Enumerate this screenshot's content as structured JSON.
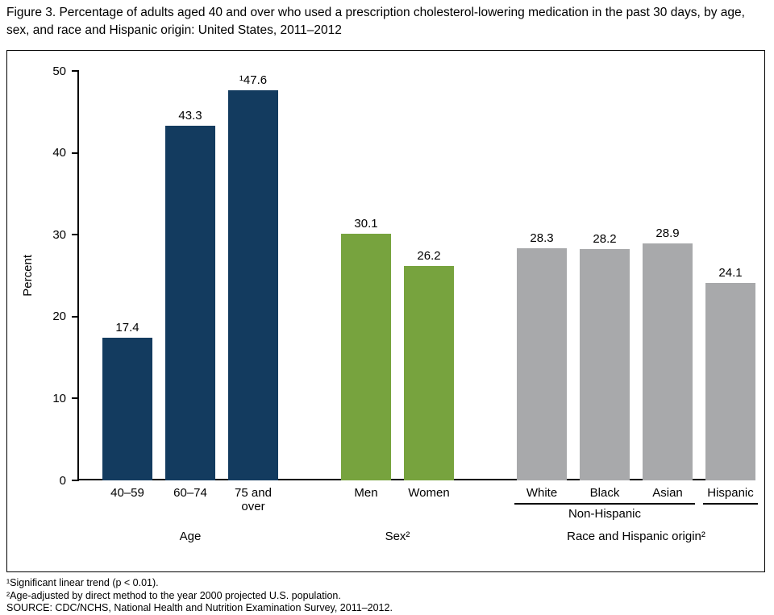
{
  "title": "Figure 3. Percentage of adults aged 40 and over who used a prescription cholesterol-lowering medication in the past 30 days, by age, sex, and race and Hispanic origin: United States, 2011–2012",
  "chart_data": {
    "type": "bar",
    "ylabel": "Percent",
    "ylim": [
      0,
      50
    ],
    "yticks": [
      0,
      10,
      20,
      30,
      40,
      50
    ],
    "grid": false,
    "groups": [
      {
        "label": "Age",
        "color": "#133b5f",
        "bars": [
          {
            "category": "40–59",
            "value": 17.4,
            "value_label": "17.4"
          },
          {
            "category": "60–74",
            "value": 43.3,
            "value_label": "43.3"
          },
          {
            "category": "75 and over",
            "value": 47.6,
            "value_label": "¹47.6"
          }
        ]
      },
      {
        "label": "Sex²",
        "color": "#77a33e",
        "bars": [
          {
            "category": "Men",
            "value": 30.1,
            "value_label": "30.1"
          },
          {
            "category": "Women",
            "value": 26.2,
            "value_label": "26.2"
          }
        ]
      },
      {
        "label": "Race and Hispanic origin²",
        "color": "#a8a9ab",
        "bars": [
          {
            "category": "White",
            "value": 28.3,
            "value_label": "28.3"
          },
          {
            "category": "Black",
            "value": 28.2,
            "value_label": "28.2"
          },
          {
            "category": "Asian",
            "value": 28.9,
            "value_label": "28.9"
          },
          {
            "category": "Hispanic",
            "value": 24.1,
            "value_label": "24.1"
          }
        ],
        "underlines": [
          {
            "from": 0,
            "to": 2,
            "label": "Non-Hispanic"
          },
          {
            "from": 3,
            "to": 3,
            "label": ""
          }
        ]
      }
    ]
  },
  "footnotes": [
    "¹Significant linear trend (p < 0.01).",
    "²Age-adjusted by direct method to the year 2000 projected U.S. population.",
    "SOURCE: CDC/NCHS, National Health and Nutrition Examination Survey, 2011–2012."
  ]
}
